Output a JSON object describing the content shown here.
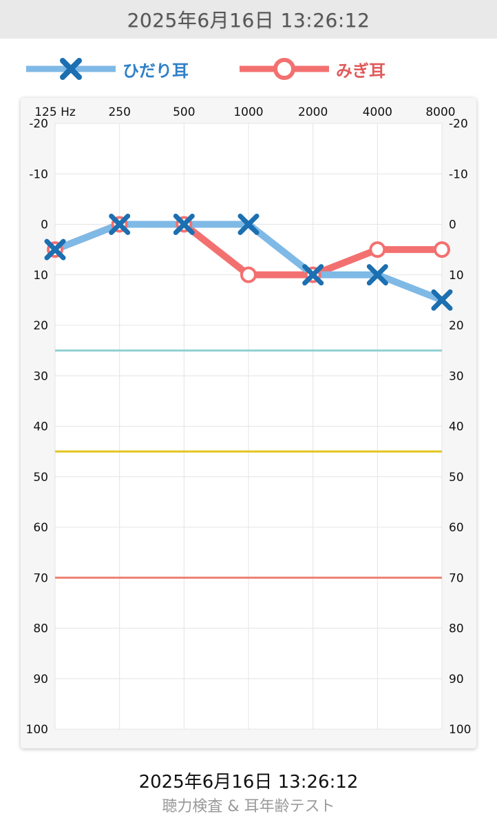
{
  "header": {
    "datetime": "2025年6月16日 13:26:12"
  },
  "legend": {
    "left_label": "ひだり耳",
    "right_label": "みぎ耳",
    "left_color": "#7fb9e6",
    "left_marker_color": "#1c6fb0",
    "right_color": "#f37070"
  },
  "chart_data": {
    "type": "line",
    "x_unit_label": "125 Hz",
    "categories": [
      "125",
      "250",
      "500",
      "1000",
      "2000",
      "4000",
      "8000"
    ],
    "y_ticks": [
      -20,
      -10,
      0,
      10,
      20,
      30,
      40,
      50,
      60,
      70,
      80,
      90,
      100
    ],
    "ylim": [
      -20,
      100
    ],
    "y_inverted": true,
    "grid": true,
    "series": [
      {
        "name": "ひだり耳",
        "marker": "x",
        "values": [
          5,
          0,
          0,
          0,
          10,
          10,
          15
        ]
      },
      {
        "name": "みぎ耳",
        "marker": "o",
        "values": [
          5,
          0,
          0,
          10,
          10,
          5,
          5
        ]
      }
    ],
    "reference_lines": [
      {
        "value": 25,
        "color": "#8fd0d0"
      },
      {
        "value": 45,
        "color": "#e3c41c"
      },
      {
        "value": 70,
        "color": "#ee8070"
      }
    ]
  },
  "footer": {
    "datetime": "2025年6月16日 13:26:12",
    "app_name": "聴力検査 & 耳年齢テスト"
  }
}
